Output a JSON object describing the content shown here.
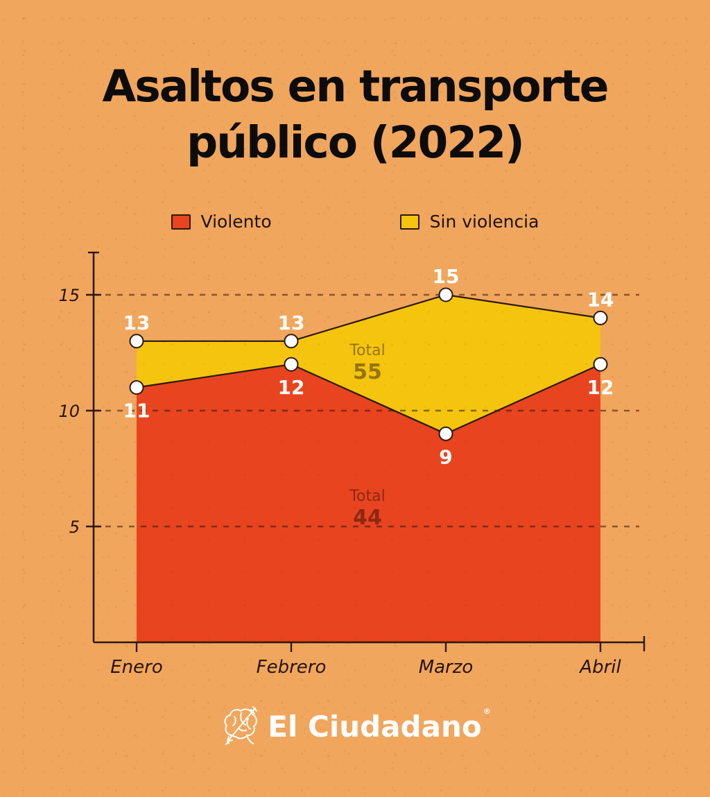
{
  "title": {
    "line1": "Asaltos en transporte",
    "line2": "público (2022)"
  },
  "legend": [
    {
      "label": "Violento",
      "color": "#e8441f"
    },
    {
      "label": "Sin violencia",
      "color": "#f5c40e"
    }
  ],
  "chart_data": {
    "type": "area",
    "title": "Asaltos en transporte público (2022)",
    "categories": [
      "Enero",
      "Febrero",
      "Marzo",
      "Abril"
    ],
    "series": [
      {
        "name": "Violento",
        "color": "#e8441f",
        "values": [
          11,
          12,
          9,
          12
        ],
        "total": 44,
        "total_label": "Total",
        "value_label_position": "below"
      },
      {
        "name": "Sin violencia",
        "color": "#f5c40e",
        "values": [
          13,
          13,
          15,
          14
        ],
        "total": 55,
        "total_label": "Total",
        "value_label_position": "above"
      }
    ],
    "overlaid": true,
    "yticks": [
      5,
      10,
      15
    ],
    "ylim": [
      0,
      16.8
    ],
    "xlabel": "",
    "ylabel": "",
    "grid": "horizontal-dashed",
    "legend_position": "top"
  },
  "footer": {
    "brand": "El Ciudadano",
    "mark": "®",
    "logo": "brain-arrow-icon"
  },
  "colors": {
    "background": "#f1a65d",
    "violento": "#e8441f",
    "sin_violencia": "#f5c40e",
    "axis_line": "#2b190d",
    "gridline": "rgba(43,22,6,0.55)",
    "value_label": "#ffffff",
    "total_label": "rgba(0,0,0,0.40)",
    "tick_text": "#241409",
    "title_text": "#0c0c0c"
  }
}
